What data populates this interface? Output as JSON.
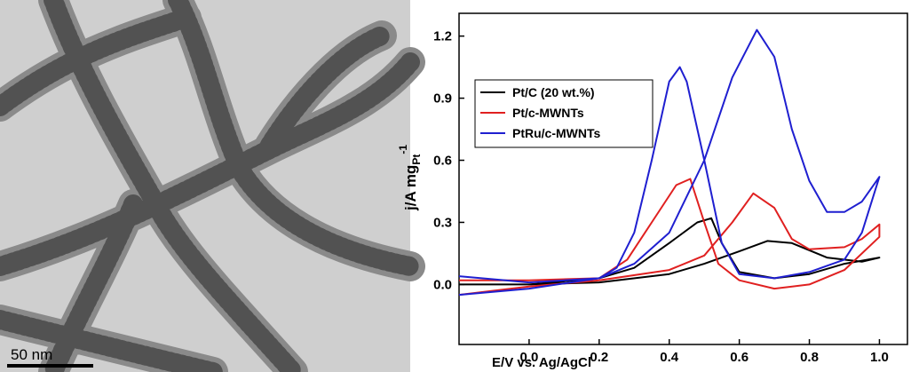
{
  "image": {
    "scale_bar": "50 nm"
  },
  "chart_data": {
    "type": "line",
    "x_label": "E/V vs. Ag/AgCl",
    "y_label": {
      "text": "j/A mg",
      "subscript": "Pt",
      "superscript": "-1"
    },
    "xlim": [
      -0.2,
      1.08
    ],
    "ylim": [
      -0.29,
      1.31
    ],
    "xticks": [
      {
        "value": 0,
        "label": "0.0"
      },
      0.2,
      0.4,
      0.6,
      0.8,
      {
        "value": 1,
        "label": "1.0"
      }
    ],
    "yticks": [
      {
        "value": 0,
        "label": "0.0"
      },
      0.3,
      0.6,
      0.9,
      1.2
    ],
    "legend": "upper left",
    "series": [
      {
        "name": "Pt/C (20 wt.%)",
        "color": "#000000",
        "x": [
          -0.2,
          0.0,
          0.2,
          0.4,
          0.5,
          0.6,
          0.68,
          0.75,
          0.85,
          0.95,
          1.0,
          0.9,
          0.8,
          0.7,
          0.6,
          0.55,
          0.52,
          0.48,
          0.4,
          0.3,
          0.2,
          0.0,
          -0.2
        ],
        "values": [
          0.0,
          0.0,
          0.01,
          0.05,
          0.1,
          0.16,
          0.21,
          0.2,
          0.13,
          0.11,
          0.13,
          0.1,
          0.05,
          0.03,
          0.06,
          0.2,
          0.32,
          0.3,
          0.2,
          0.08,
          0.03,
          0.0,
          0.0
        ]
      },
      {
        "name": "Pt/c-MWNTs",
        "color": "#e02020",
        "x": [
          -0.2,
          -0.1,
          0.0,
          0.2,
          0.4,
          0.5,
          0.58,
          0.64,
          0.7,
          0.75,
          0.8,
          0.9,
          0.95,
          1.0,
          1.0,
          0.9,
          0.8,
          0.7,
          0.6,
          0.54,
          0.5,
          0.46,
          0.42,
          0.35,
          0.28,
          0.2,
          0.0,
          -0.2
        ],
        "values": [
          -0.05,
          -0.03,
          -0.01,
          0.02,
          0.07,
          0.14,
          0.3,
          0.44,
          0.37,
          0.22,
          0.17,
          0.18,
          0.22,
          0.29,
          0.23,
          0.07,
          0.0,
          -0.02,
          0.02,
          0.1,
          0.3,
          0.51,
          0.48,
          0.3,
          0.12,
          0.03,
          0.02,
          0.02
        ]
      },
      {
        "name": "PtRu/c-MWNTs",
        "color": "#1f1fd0",
        "x": [
          -0.2,
          0.0,
          0.2,
          0.3,
          0.4,
          0.5,
          0.58,
          0.65,
          0.7,
          0.75,
          0.8,
          0.85,
          0.9,
          0.95,
          1.0,
          0.95,
          0.9,
          0.8,
          0.7,
          0.6,
          0.55,
          0.5,
          0.45,
          0.43,
          0.4,
          0.35,
          0.3,
          0.25,
          0.2,
          0.0,
          -0.2
        ],
        "values": [
          -0.05,
          -0.02,
          0.03,
          0.1,
          0.25,
          0.6,
          1.0,
          1.23,
          1.1,
          0.75,
          0.5,
          0.35,
          0.35,
          0.4,
          0.52,
          0.25,
          0.12,
          0.06,
          0.03,
          0.05,
          0.2,
          0.6,
          0.98,
          1.05,
          0.98,
          0.6,
          0.25,
          0.08,
          0.03,
          0.01,
          0.04
        ]
      }
    ]
  }
}
